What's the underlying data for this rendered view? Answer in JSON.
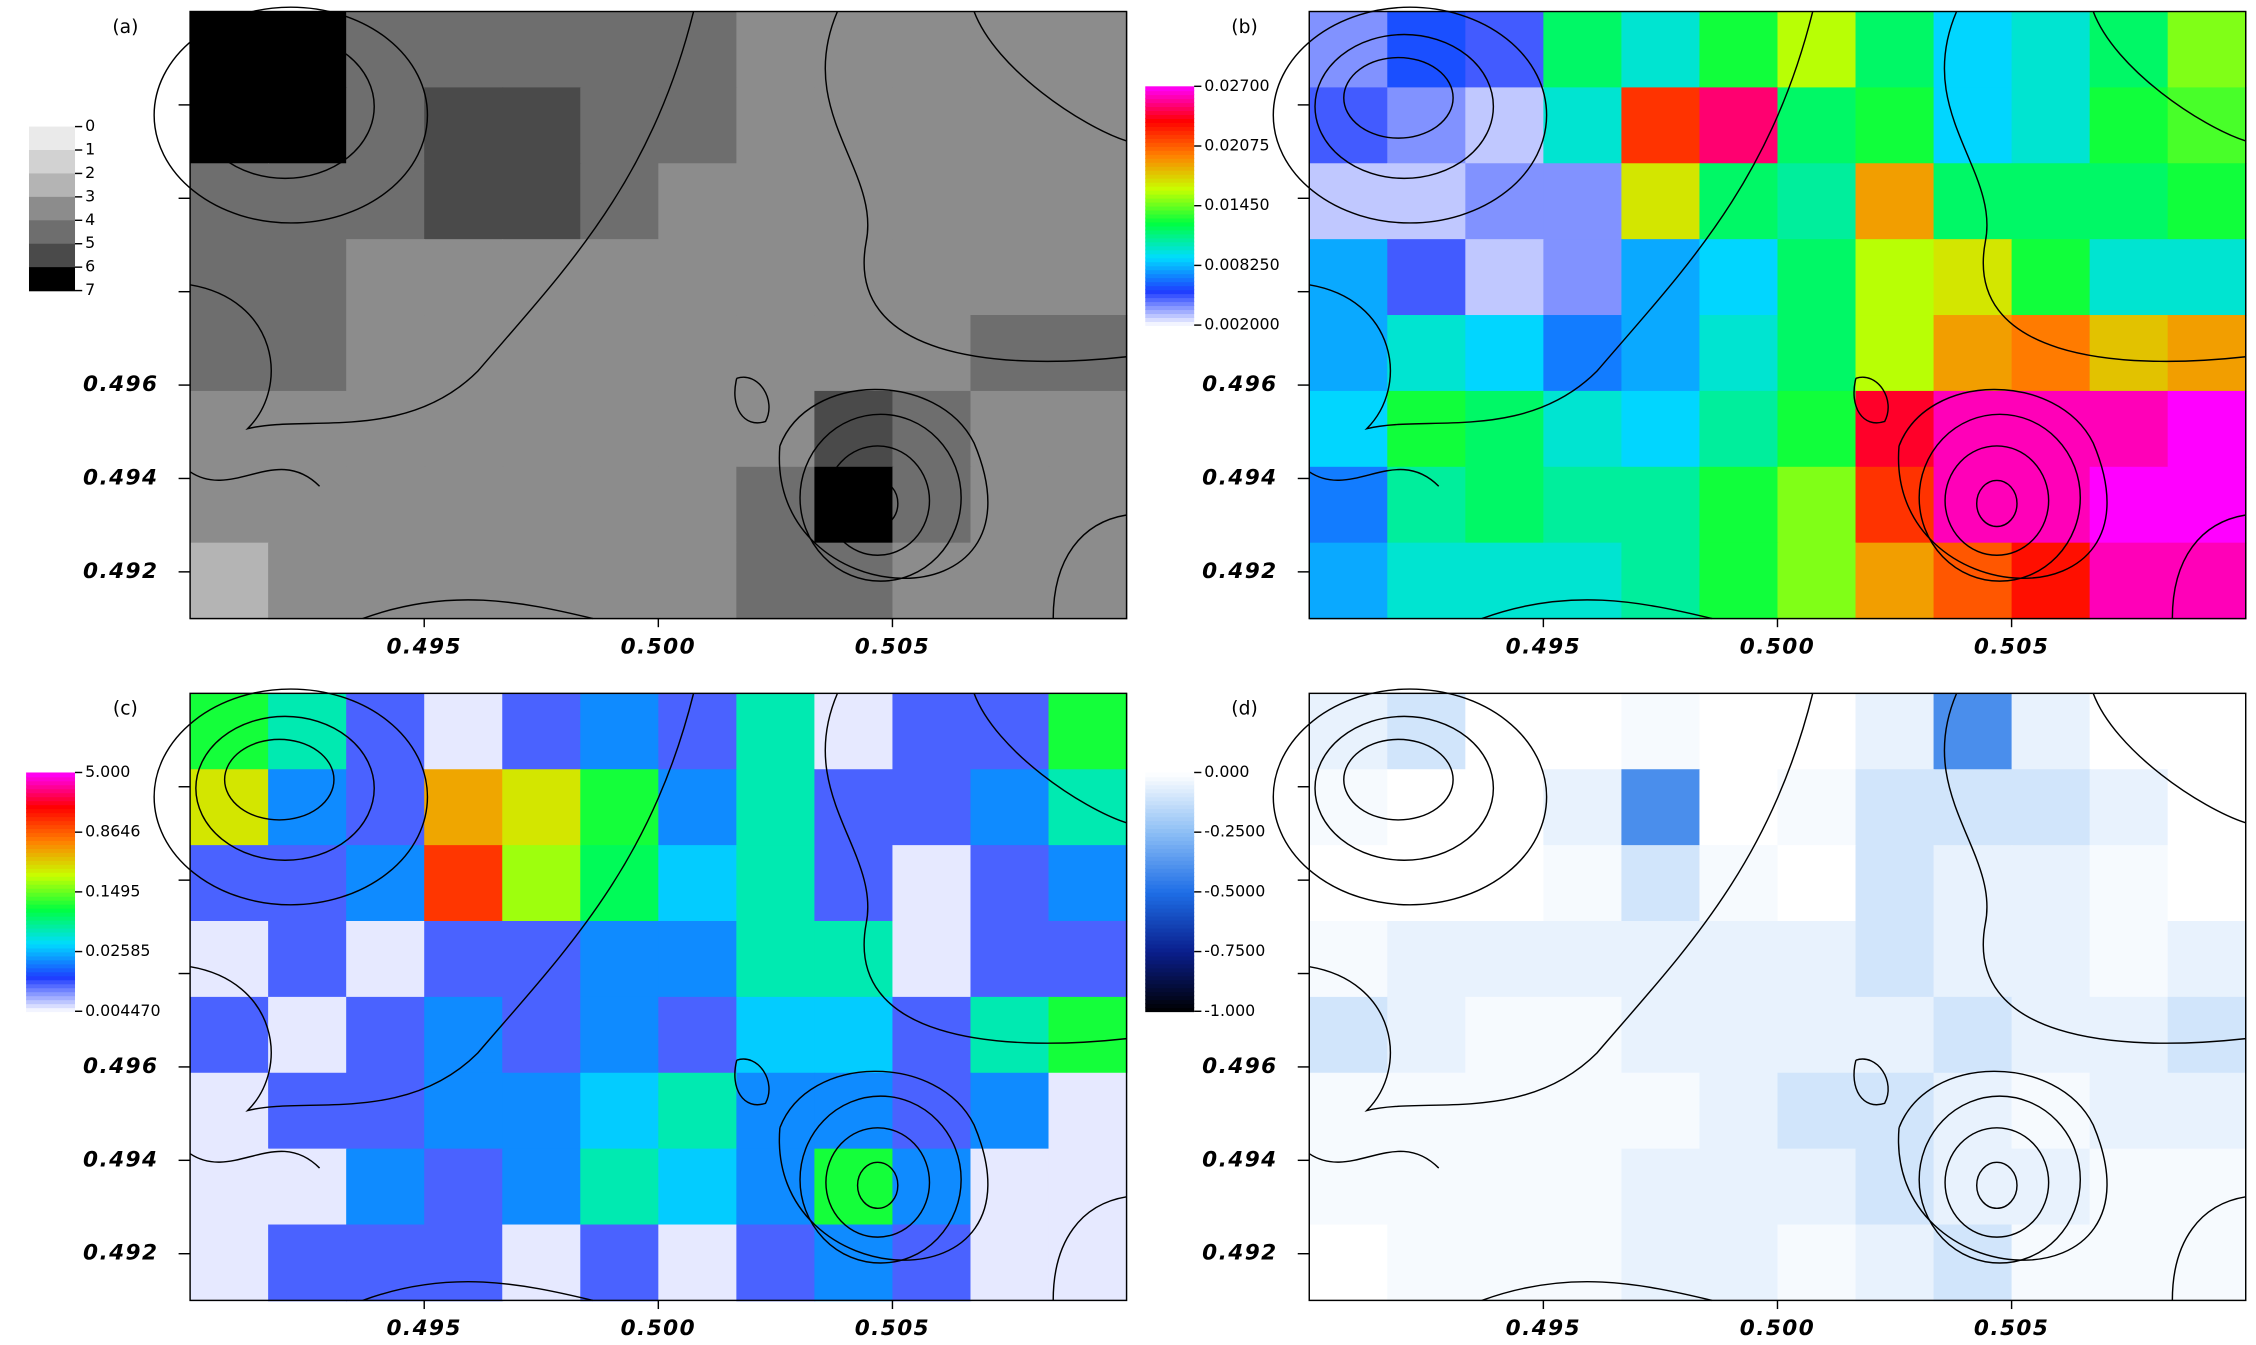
{
  "chart_data": [
    {
      "type": "heatmap",
      "title": "(a)",
      "xlim": [
        0.49,
        0.51
      ],
      "ylim": [
        0.491,
        0.504
      ],
      "xticks": [
        0.495,
        {
          "value": 0.5,
          "label": "0.500"
        },
        0.505
      ],
      "yticks": [
        0.492,
        0.494,
        0.496
      ],
      "yminor": [
        0.498,
        0.5,
        0.502
      ],
      "z": [
        [
          6,
          7,
          4.5,
          4.5,
          4.5,
          4.5,
          4,
          3.5,
          3.5,
          3.5,
          3.5,
          3.5
        ],
        [
          7,
          6,
          4.5,
          5,
          5,
          4.5,
          4,
          3.5,
          3.5,
          3.5,
          3.5,
          3.5
        ],
        [
          4.5,
          4.5,
          4.5,
          5,
          5,
          4.5,
          3.5,
          3.5,
          3.5,
          3.5,
          3.5,
          3.5
        ],
        [
          4.5,
          4.5,
          3.5,
          3.5,
          3.5,
          3.5,
          3.5,
          3.5,
          3.5,
          3.5,
          3.5,
          3.5
        ],
        [
          4.5,
          4.5,
          3.5,
          3.5,
          3.5,
          3.5,
          3.5,
          3.5,
          3.5,
          3.5,
          4.5,
          4.5
        ],
        [
          3.5,
          3.5,
          3.5,
          3.5,
          3.5,
          3.5,
          3.5,
          3.5,
          5,
          4.5,
          3.5,
          3.5
        ],
        [
          3.5,
          3.5,
          3.5,
          3.5,
          3.5,
          3.5,
          3.5,
          4.5,
          6,
          4.5,
          3.5,
          3.5
        ],
        [
          2.5,
          3.5,
          3.5,
          3.5,
          3.5,
          3.5,
          3.5,
          4.5,
          4.5,
          3.5,
          3.5,
          3.5
        ]
      ],
      "colorbar": {
        "clim": [
          0,
          7
        ],
        "ticks": [
          0,
          1,
          2,
          3,
          4,
          5,
          6,
          7
        ],
        "discrete": true,
        "inverted": true,
        "colormap": [
          "#eaeaea",
          "#d2d2d2",
          "#b4b4b4",
          "#8c8c8c",
          "#6e6e6e",
          "#4a4a4a",
          "#000000"
        ]
      }
    },
    {
      "type": "heatmap",
      "title": "(b)",
      "xlim": [
        0.49,
        0.51
      ],
      "ylim": [
        0.491,
        0.504
      ],
      "xticks": [
        0.495,
        {
          "value": 0.5,
          "label": "0.500"
        },
        0.505
      ],
      "yticks": [
        0.492,
        0.494,
        0.496
      ],
      "yminor": [
        0.498,
        0.5,
        0.502
      ],
      "z": [
        [
          0.004,
          0.006,
          0.005,
          0.012,
          0.01,
          0.013,
          0.016,
          0.012,
          0.009,
          0.01,
          0.012,
          0.015
        ],
        [
          0.005,
          0.004,
          0.003,
          0.01,
          0.022,
          0.025,
          0.012,
          0.013,
          0.009,
          0.01,
          0.013,
          0.014
        ],
        [
          0.003,
          0.003,
          0.004,
          0.004,
          0.017,
          0.012,
          0.011,
          0.019,
          0.012,
          0.012,
          0.012,
          0.013
        ],
        [
          0.008,
          0.005,
          0.003,
          0.004,
          0.008,
          0.009,
          0.012,
          0.016,
          0.017,
          0.013,
          0.01,
          0.01
        ],
        [
          0.008,
          0.01,
          0.009,
          0.007,
          0.008,
          0.01,
          0.012,
          0.016,
          0.019,
          0.02,
          0.018,
          0.019
        ],
        [
          0.009,
          0.013,
          0.012,
          0.01,
          0.009,
          0.011,
          0.013,
          0.024,
          0.026,
          0.026,
          0.026,
          0.027
        ],
        [
          0.007,
          0.011,
          0.012,
          0.011,
          0.011,
          0.013,
          0.015,
          0.022,
          0.026,
          0.026,
          0.027,
          0.027
        ],
        [
          0.008,
          0.01,
          0.01,
          0.01,
          0.011,
          0.013,
          0.015,
          0.019,
          0.021,
          0.023,
          0.026,
          0.026
        ]
      ],
      "colorbar": {
        "clim": [
          0.002,
          0.027
        ],
        "ticks": [
          {
            "value": 0.027,
            "label": "0.02700"
          },
          {
            "value": 0.02075,
            "label": "0.02075"
          },
          {
            "value": 0.0145,
            "label": "0.01450"
          },
          {
            "value": 0.00825,
            "label": "0.008250"
          },
          {
            "value": 0.002,
            "label": "0.002000"
          }
        ],
        "colormap": [
          "#ffffff",
          "#1e3cff",
          "#00dcff",
          "#00ff40",
          "#c8ff00",
          "#ff8000",
          "#ff0000",
          "#ff00ff"
        ]
      }
    },
    {
      "type": "heatmap",
      "title": "(c)",
      "xlim": [
        0.49,
        0.51
      ],
      "ylim": [
        0.491,
        0.504
      ],
      "xticks": [
        0.495,
        {
          "value": 0.5,
          "label": "0.500"
        },
        0.505
      ],
      "yticks": [
        0.492,
        0.494,
        0.496
      ],
      "yminor": [
        0.498,
        0.5,
        0.502
      ],
      "z": [
        [
          0.1,
          0.05,
          0.01,
          0.005,
          0.01,
          0.02,
          0.01,
          0.05,
          0.005,
          0.01,
          0.01,
          0.1
        ],
        [
          0.3,
          0.02,
          0.01,
          0.5,
          0.3,
          0.1,
          0.02,
          0.05,
          0.01,
          0.01,
          0.02,
          0.05
        ],
        [
          0.01,
          0.01,
          0.02,
          1.2,
          0.2,
          0.08,
          0.03,
          0.05,
          0.01,
          0.005,
          0.01,
          0.02
        ],
        [
          0.005,
          0.01,
          0.005,
          0.01,
          0.01,
          0.02,
          0.02,
          0.05,
          0.05,
          0.005,
          0.01,
          0.01
        ],
        [
          0.01,
          0.005,
          0.01,
          0.02,
          0.01,
          0.02,
          0.01,
          0.03,
          0.03,
          0.01,
          0.05,
          0.1
        ],
        [
          0.005,
          0.01,
          0.01,
          0.02,
          0.02,
          0.03,
          0.05,
          0.02,
          0.02,
          0.01,
          0.02,
          0.005
        ],
        [
          0.005,
          0.005,
          0.02,
          0.01,
          0.02,
          0.05,
          0.03,
          0.02,
          0.1,
          0.02,
          0.005,
          0.005
        ],
        [
          0.005,
          0.01,
          0.01,
          0.01,
          0.005,
          0.01,
          0.005,
          0.01,
          0.02,
          0.01,
          0.005,
          0.005
        ]
      ],
      "colorbar": {
        "clim": [
          0.00447,
          5
        ],
        "log": true,
        "ticks": [
          {
            "value": 5,
            "label": "5.000"
          },
          0.8646,
          0.1495,
          0.02585,
          {
            "value": 0.00447,
            "label": "0.004470"
          }
        ],
        "colormap": [
          "#ffffff",
          "#1e3cff",
          "#00dcff",
          "#00ff40",
          "#c8ff00",
          "#ff8000",
          "#ff0000",
          "#ff00ff"
        ]
      }
    },
    {
      "type": "heatmap",
      "title": "(d)",
      "xlim": [
        0.49,
        0.51
      ],
      "ylim": [
        0.491,
        0.504
      ],
      "xticks": [
        0.495,
        {
          "value": 0.5,
          "label": "0.500"
        },
        0.505
      ],
      "yticks": [
        0.492,
        0.494,
        0.496
      ],
      "yminor": [
        0.498,
        0.5,
        0.502
      ],
      "z": [
        [
          -0.05,
          -0.1,
          0,
          0,
          -0.02,
          0,
          0,
          -0.05,
          -0.4,
          -0.05,
          0,
          0
        ],
        [
          -0.02,
          0,
          0,
          -0.05,
          -0.4,
          0,
          -0.02,
          -0.1,
          -0.1,
          -0.1,
          -0.05,
          0
        ],
        [
          0,
          0,
          0,
          -0.02,
          -0.1,
          -0.02,
          0,
          -0.1,
          -0.05,
          -0.05,
          -0.02,
          0
        ],
        [
          -0.02,
          -0.05,
          -0.05,
          -0.05,
          -0.05,
          -0.05,
          -0.05,
          -0.1,
          -0.05,
          -0.05,
          -0.02,
          -0.05
        ],
        [
          -0.1,
          -0.05,
          -0.02,
          -0.02,
          -0.05,
          -0.05,
          -0.05,
          -0.05,
          -0.1,
          -0.05,
          -0.05,
          -0.1
        ],
        [
          -0.02,
          -0.02,
          -0.02,
          -0.02,
          -0.02,
          -0.05,
          -0.1,
          -0.1,
          -0.05,
          -0.02,
          -0.05,
          -0.05
        ],
        [
          -0.02,
          -0.02,
          -0.02,
          -0.02,
          -0.05,
          -0.05,
          -0.05,
          -0.1,
          -0.05,
          -0.05,
          -0.02,
          -0.02
        ],
        [
          0,
          -0.02,
          -0.02,
          -0.02,
          -0.05,
          -0.05,
          -0.02,
          -0.05,
          -0.1,
          -0.02,
          -0.02,
          -0.02
        ]
      ],
      "colorbar": {
        "clim": [
          -1,
          0
        ],
        "ticks": [
          {
            "value": 0,
            "label": "0.000"
          },
          {
            "value": -0.25,
            "label": "-0.2500"
          },
          {
            "value": -0.5,
            "label": "-0.5000"
          },
          {
            "value": -0.75,
            "label": "-0.7500"
          },
          {
            "value": -1,
            "label": "-1.000"
          }
        ],
        "colormap": [
          "#000000",
          "#0a1e8c",
          "#1e6ee6",
          "#8cbef5",
          "#ffffff"
        ]
      }
    }
  ]
}
